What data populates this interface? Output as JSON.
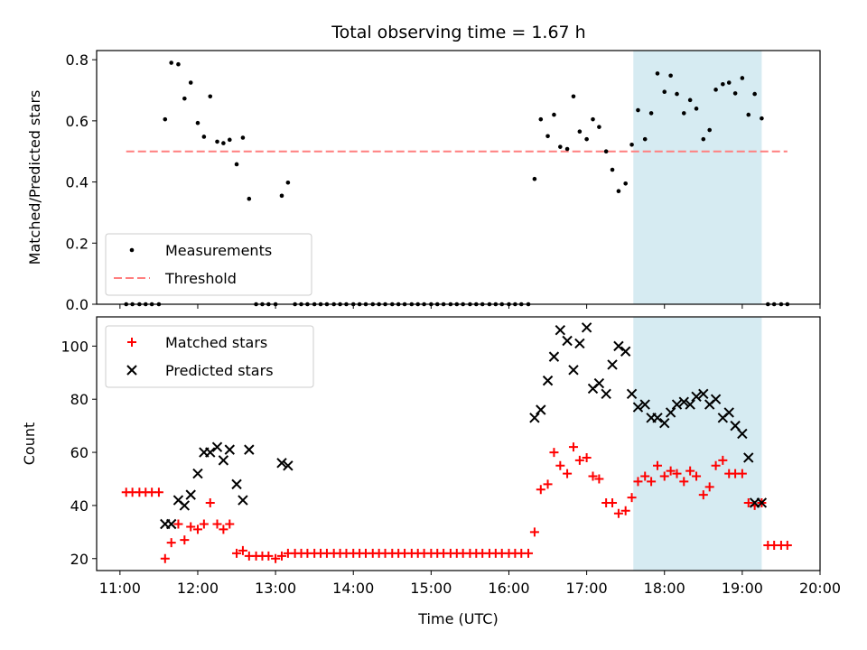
{
  "chart_data": [
    {
      "type": "scatter",
      "title": "Total observing time = 1.67 h",
      "xlabel": "",
      "ylabel": "Matched/Predicted stars",
      "ylim": [
        0,
        0.83
      ],
      "yticks": [
        "0.0",
        "0.2",
        "0.4",
        "0.6",
        "0.8"
      ],
      "xlim": [
        10.7,
        20.0
      ],
      "shaded_region": {
        "x": [
          17.6,
          19.25
        ],
        "color": "#add8e6"
      },
      "legend": [
        "Measurements",
        "Threshold"
      ],
      "legend_position": "lower-left",
      "threshold": {
        "name": "Threshold",
        "value": 0.5,
        "x": [
          11.08,
          19.58
        ],
        "color": "#ff7f7f"
      },
      "series": [
        {
          "name": "Measurements",
          "color": "#000000",
          "x": [
            11.08,
            11.16,
            11.25,
            11.33,
            11.41,
            11.5,
            11.58,
            11.66,
            11.75,
            11.83,
            11.91,
            12.0,
            12.08,
            12.16,
            12.25,
            12.33,
            12.41,
            12.5,
            12.58,
            12.66,
            12.75,
            12.83,
            12.91,
            13.0,
            13.08,
            13.16,
            13.25,
            13.33,
            13.41,
            13.5,
            13.58,
            13.66,
            13.75,
            13.83,
            13.91,
            14.0,
            14.08,
            14.16,
            14.25,
            14.33,
            14.41,
            14.5,
            14.58,
            14.66,
            14.75,
            14.83,
            14.91,
            15.0,
            15.08,
            15.16,
            15.25,
            15.33,
            15.41,
            15.5,
            15.58,
            15.66,
            15.75,
            15.83,
            15.91,
            16.0,
            16.08,
            16.16,
            16.25,
            16.33,
            16.41,
            16.5,
            16.58,
            16.66,
            16.75,
            16.83,
            16.91,
            17.0,
            17.08,
            17.16,
            17.25,
            17.33,
            17.41,
            17.5,
            17.58,
            17.66,
            17.75,
            17.83,
            17.91,
            18.0,
            18.08,
            18.16,
            18.25,
            18.33,
            18.41,
            18.5,
            18.58,
            18.66,
            18.75,
            18.83,
            18.91,
            19.0,
            19.08,
            19.16,
            19.25,
            19.33,
            19.41,
            19.5,
            19.58
          ],
          "y": [
            0,
            0,
            0,
            0,
            0,
            0,
            0.605,
            0.79,
            0.785,
            0.673,
            0.725,
            0.593,
            0.548,
            0.68,
            0.532,
            0.527,
            0.538,
            0.458,
            0.545,
            0.345,
            0,
            0,
            0,
            0,
            0.355,
            0.398,
            0,
            0,
            0,
            0,
            0,
            0,
            0,
            0,
            0,
            0,
            0,
            0,
            0,
            0,
            0,
            0,
            0,
            0,
            0,
            0,
            0,
            0,
            0,
            0,
            0,
            0,
            0,
            0,
            0,
            0,
            0,
            0,
            0,
            0,
            0,
            0,
            0,
            0.41,
            0.605,
            0.55,
            0.62,
            0.515,
            0.508,
            0.68,
            0.565,
            0.54,
            0.605,
            0.58,
            0.5,
            0.44,
            0.37,
            0.395,
            0.522,
            0.635,
            0.54,
            0.625,
            0.755,
            0.695,
            0.748,
            0.688,
            0.625,
            0.668,
            0.64,
            0.54,
            0.57,
            0.702,
            0.72,
            0.725,
            0.69,
            0.74,
            0.62,
            0.688,
            0.608,
            0,
            0,
            0,
            0
          ]
        }
      ]
    },
    {
      "type": "scatter",
      "title": "",
      "xlabel": "Time (UTC)",
      "ylabel": "Count",
      "ylim": [
        15.5,
        111
      ],
      "yticks": [
        "20",
        "40",
        "60",
        "80",
        "100"
      ],
      "xlim": [
        10.7,
        20.0
      ],
      "xticks": [
        "11:00",
        "12:00",
        "13:00",
        "14:00",
        "15:00",
        "16:00",
        "17:00",
        "18:00",
        "19:00",
        "20:00"
      ],
      "shaded_region": {
        "x": [
          17.6,
          19.25
        ],
        "color": "#add8e6"
      },
      "legend": [
        "Matched stars",
        "Predicted stars"
      ],
      "legend_position": "upper-left",
      "series": [
        {
          "name": "Matched stars",
          "color": "#ff0000",
          "marker": "+",
          "x": [
            11.08,
            11.16,
            11.25,
            11.33,
            11.41,
            11.5,
            11.58,
            11.66,
            11.75,
            11.83,
            11.91,
            12.0,
            12.08,
            12.16,
            12.25,
            12.33,
            12.41,
            12.5,
            12.58,
            12.66,
            12.75,
            12.83,
            12.91,
            13.0,
            13.08,
            13.16,
            13.25,
            13.33,
            13.41,
            13.5,
            13.58,
            13.66,
            13.75,
            13.83,
            13.91,
            14.0,
            14.08,
            14.16,
            14.25,
            14.33,
            14.41,
            14.5,
            14.58,
            14.66,
            14.75,
            14.83,
            14.91,
            15.0,
            15.08,
            15.16,
            15.25,
            15.33,
            15.41,
            15.5,
            15.58,
            15.66,
            15.75,
            15.83,
            15.91,
            16.0,
            16.08,
            16.16,
            16.25,
            16.33,
            16.41,
            16.5,
            16.58,
            16.66,
            16.75,
            16.83,
            16.91,
            17.0,
            17.08,
            17.16,
            17.25,
            17.33,
            17.41,
            17.5,
            17.58,
            17.66,
            17.75,
            17.83,
            17.91,
            18.0,
            18.08,
            18.16,
            18.25,
            18.33,
            18.41,
            18.5,
            18.58,
            18.66,
            18.75,
            18.83,
            18.91,
            19.0,
            19.08,
            19.16,
            19.25,
            19.33,
            19.41,
            19.5,
            19.58
          ],
          "y": [
            45,
            45,
            45,
            45,
            45,
            45,
            20,
            26,
            33,
            27,
            32,
            31,
            33,
            41,
            33,
            31,
            33,
            22,
            23,
            21,
            21,
            21,
            21,
            20,
            21,
            22,
            22,
            22,
            22,
            22,
            22,
            22,
            22,
            22,
            22,
            22,
            22,
            22,
            22,
            22,
            22,
            22,
            22,
            22,
            22,
            22,
            22,
            22,
            22,
            22,
            22,
            22,
            22,
            22,
            22,
            22,
            22,
            22,
            22,
            22,
            22,
            22,
            22,
            30,
            46,
            48,
            60,
            55,
            52,
            62,
            57,
            58,
            51,
            50,
            41,
            41,
            37,
            38,
            43,
            49,
            51,
            49,
            55,
            51,
            53,
            52,
            49,
            53,
            51,
            44,
            47,
            55,
            57,
            52,
            52,
            52,
            41,
            40,
            41,
            25,
            25,
            25,
            25
          ]
        },
        {
          "name": "Predicted stars",
          "color": "#000000",
          "marker": "x",
          "x": [
            11.58,
            11.66,
            11.75,
            11.83,
            11.91,
            12.0,
            12.08,
            12.16,
            12.25,
            12.33,
            12.41,
            12.5,
            12.58,
            12.66,
            13.08,
            13.16,
            16.33,
            16.41,
            16.5,
            16.58,
            16.66,
            16.75,
            16.83,
            16.91,
            17.0,
            17.08,
            17.16,
            17.25,
            17.33,
            17.41,
            17.5,
            17.58,
            17.66,
            17.75,
            17.83,
            17.91,
            18.0,
            18.08,
            18.16,
            18.25,
            18.33,
            18.41,
            18.5,
            18.58,
            18.66,
            18.75,
            18.83,
            18.91,
            19.0,
            19.08,
            19.16,
            19.25
          ],
          "y": [
            33,
            33,
            42,
            40,
            44,
            52,
            60,
            60,
            62,
            57,
            61,
            48,
            42,
            61,
            56,
            55,
            73,
            76,
            87,
            96,
            106,
            102,
            91,
            101,
            107,
            84,
            86,
            82,
            93,
            100,
            98,
            82,
            77,
            78,
            73,
            73,
            71,
            75,
            78,
            79,
            78,
            81,
            82,
            78,
            80,
            73,
            75,
            70,
            67,
            58,
            41,
            41
          ]
        }
      ]
    }
  ]
}
